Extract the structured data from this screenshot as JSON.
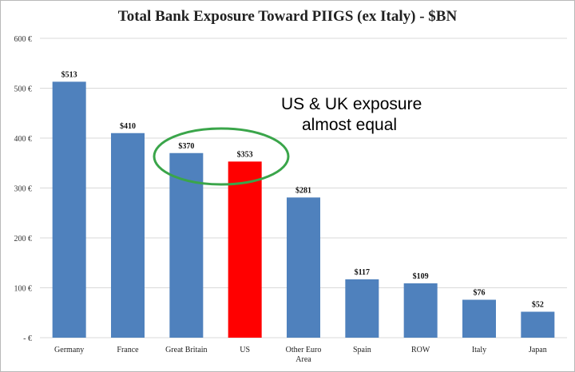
{
  "chart_data": {
    "type": "bar",
    "title": "Total Bank Exposure Toward PIIGS (ex Italy) - $BN",
    "categories": [
      "Germany",
      "France",
      "Great Britain",
      "US",
      "Other Euro Area",
      "Spain",
      "ROW",
      "Italy",
      "Japan"
    ],
    "values": [
      513,
      410,
      370,
      353,
      281,
      117,
      109,
      76,
      52
    ],
    "data_labels": [
      "$513",
      "$410",
      "$370",
      "$353",
      "$281",
      "$117",
      "$109",
      "$76",
      "$52"
    ],
    "highlight_category": "US",
    "y_ticks": [
      "-  €",
      "100 €",
      "200 €",
      "300 €",
      "400 €",
      "500 €",
      "600 €"
    ],
    "ylim": [
      0,
      600
    ],
    "grid": true,
    "colors": {
      "bar": "#4f81bd",
      "highlight": "#ff0000",
      "grid": "#d9d9d9",
      "circle": "#3aa54a"
    },
    "annotation": {
      "line1": "US & UK exposure",
      "line2": "almost equal"
    }
  }
}
